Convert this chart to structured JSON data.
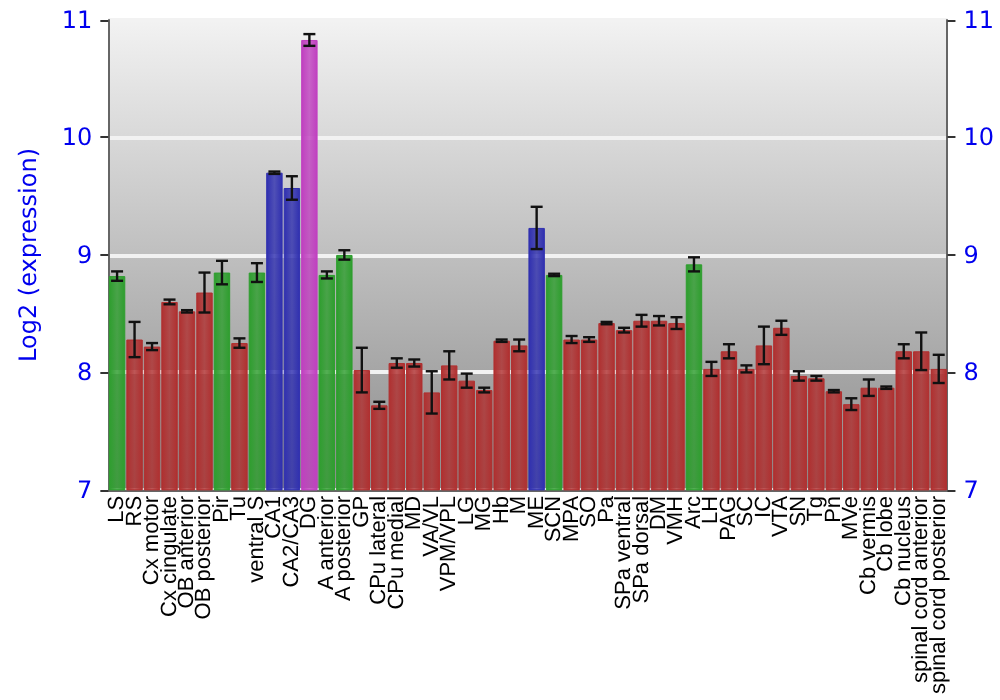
{
  "chart_data": {
    "type": "bar",
    "ylabel": "Log2 (expression)",
    "categories": [
      "LS",
      "RS",
      "Cx motor",
      "Cx cingulate",
      "OB anterior",
      "OB posterior",
      "Pir",
      "Tu",
      "ventral S",
      "CA1",
      "CA2/CA3",
      "DG",
      "A anterior",
      "A posterior",
      "GP",
      "CPu lateral",
      "CPu medial",
      "MD",
      "VA/VL",
      "VPM/VPL",
      "LG",
      "MG",
      "Hb",
      "M",
      "ME",
      "SCN",
      "MPA",
      "SO",
      "Pa",
      "SPa ventral",
      "SPa dorsal",
      "DM",
      "VMH",
      "Arc",
      "LH",
      "PAG",
      "SC",
      "IC",
      "VTA",
      "SN",
      "Tg",
      "Pn",
      "MVe",
      "Cb vermis",
      "Cb lobe",
      "Cb nucleus",
      "spinal cord anterior",
      "spinal cord posterior"
    ],
    "values": [
      8.82,
      8.28,
      8.22,
      8.6,
      8.52,
      8.68,
      8.85,
      8.25,
      8.85,
      9.7,
      9.57,
      10.83,
      8.83,
      9.0,
      8.02,
      7.72,
      8.08,
      8.08,
      7.83,
      8.06,
      7.93,
      7.85,
      8.27,
      8.23,
      9.23,
      8.83,
      8.28,
      8.28,
      8.42,
      8.36,
      8.44,
      8.44,
      8.42,
      8.92,
      8.03,
      8.18,
      8.03,
      8.23,
      8.38,
      7.97,
      7.95,
      7.84,
      7.73,
      7.87,
      7.87,
      8.18,
      8.18,
      8.03
    ],
    "errors": [
      0.04,
      0.15,
      0.03,
      0.02,
      0.01,
      0.17,
      0.1,
      0.04,
      0.08,
      0.01,
      0.1,
      0.05,
      0.03,
      0.04,
      0.19,
      0.03,
      0.04,
      0.03,
      0.18,
      0.12,
      0.06,
      0.02,
      0.01,
      0.05,
      0.18,
      0.01,
      0.03,
      0.02,
      0.01,
      0.02,
      0.05,
      0.04,
      0.05,
      0.06,
      0.06,
      0.06,
      0.03,
      0.16,
      0.06,
      0.04,
      0.02,
      0.01,
      0.05,
      0.07,
      0.01,
      0.06,
      0.16,
      0.12
    ],
    "colors": [
      "#2e9e2e",
      "#b03030",
      "#b03030",
      "#b03030",
      "#b03030",
      "#b03030",
      "#2e9e2e",
      "#b03030",
      "#2e9e2e",
      "#3030b0",
      "#3030b0",
      "#c040c0",
      "#2e9e2e",
      "#2e9e2e",
      "#b03030",
      "#b03030",
      "#b03030",
      "#b03030",
      "#b03030",
      "#b03030",
      "#b03030",
      "#b03030",
      "#b03030",
      "#b03030",
      "#3030b0",
      "#2e9e2e",
      "#b03030",
      "#b03030",
      "#b03030",
      "#b03030",
      "#b03030",
      "#b03030",
      "#b03030",
      "#2e9e2e",
      "#b03030",
      "#b03030",
      "#b03030",
      "#b03030",
      "#b03030",
      "#b03030",
      "#b03030",
      "#b03030",
      "#b03030",
      "#b03030",
      "#b03030",
      "#b03030",
      "#b03030",
      "#b03030"
    ],
    "ylim": [
      7,
      11
    ],
    "yticks": [
      7,
      8,
      9,
      10,
      11
    ],
    "y2lim": [
      7,
      11
    ],
    "y2ticks": [
      7,
      8,
      9,
      10,
      11
    ],
    "grid": "y"
  }
}
